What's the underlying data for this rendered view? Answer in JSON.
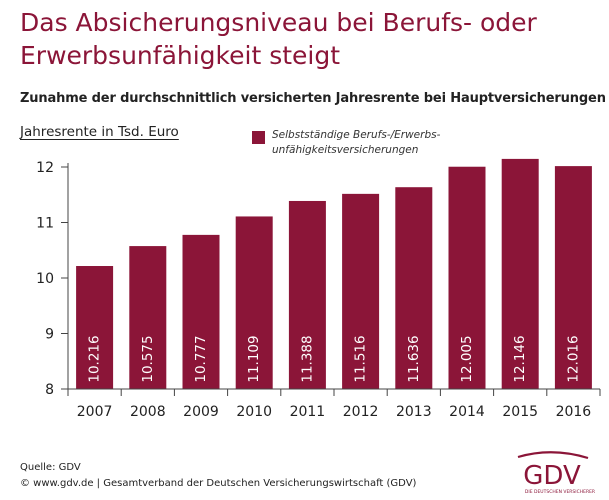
{
  "header": {
    "title_line1": "Das Absicherungsniveau bei Berufs- oder",
    "title_line2": "Erwerbsunfähigkeit steigt",
    "subtitle": "Zunahme der durchschnittlich versicherten Jahresrente bei Hauptversicherungen"
  },
  "legend": {
    "line1": "Selbstständige Berufs-/Erwerbs-",
    "line2": "unfähigkeitsversicherungen"
  },
  "footer": {
    "source": "Quelle: GDV",
    "copyright": "© www.gdv.de | Gesamtverband der Deutschen Versicherungswirtschaft (GDV)"
  },
  "logo": {
    "text": "GDV",
    "tagline": "DIE DEUTSCHEN VERSICHERER",
    "color": "#8b1538"
  },
  "chart_data": {
    "type": "bar",
    "ylabel": "Jahresrente in Tsd. Euro",
    "xlabel": "",
    "categories": [
      "2007",
      "2008",
      "2009",
      "2010",
      "2011",
      "2012",
      "2013",
      "2014",
      "2015",
      "2016"
    ],
    "series": [
      {
        "name": "Selbstständige Berufs-/Erwerbs-unfähigkeitsversicherungen",
        "values": [
          10.216,
          10.575,
          10.777,
          11.109,
          11.388,
          11.516,
          11.636,
          12.005,
          12.146,
          12.016
        ],
        "labels": [
          "10.216",
          "10.575",
          "10.777",
          "11.109",
          "11.388",
          "11.516",
          "11.636",
          "12.005",
          "12.146",
          "12.016"
        ],
        "color": "#8b1538"
      }
    ],
    "ylim": [
      8,
      12
    ],
    "yticks": [
      "8",
      "9",
      "10",
      "11",
      "12"
    ],
    "grid": false,
    "legend_position": "top"
  }
}
